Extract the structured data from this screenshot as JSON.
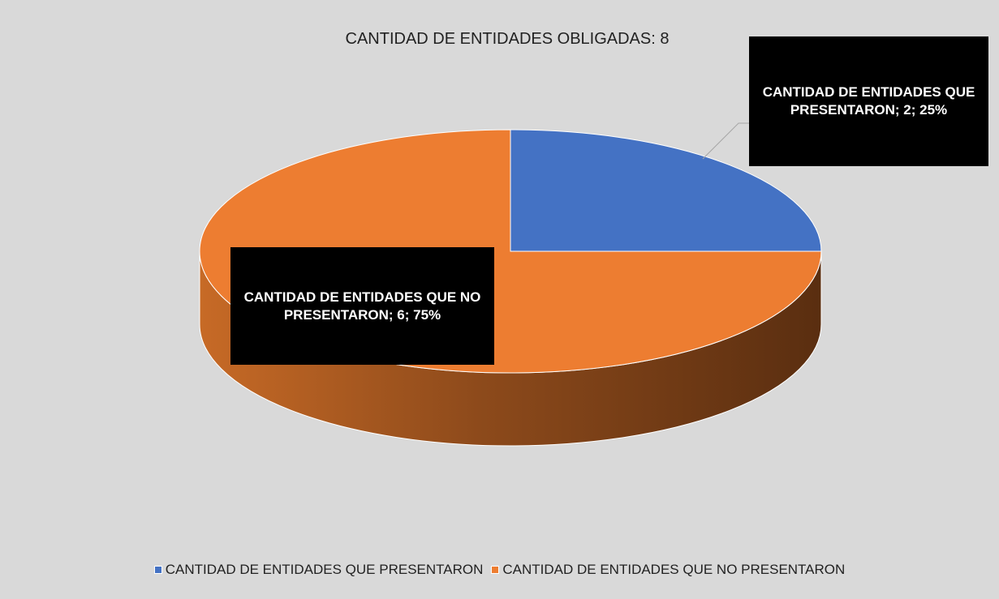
{
  "chart_data": {
    "type": "pie",
    "title": "CANTIDAD DE ENTIDADES OBLIGADAS: 8",
    "categories": [
      "CANTIDAD DE ENTIDADES QUE PRESENTARON",
      "CANTIDAD DE ENTIDADES QUE NO PRESENTARON"
    ],
    "values": [
      2,
      6
    ],
    "value_labels": [
      "CANTIDAD DE ENTIDADES QUE PRESENTARON; 2; 25%",
      "CANTIDAD DE ENTIDADES QUE NO PRESENTARON; 6; 75%"
    ],
    "colors": [
      "#4472c4",
      "#ed7d31"
    ]
  }
}
